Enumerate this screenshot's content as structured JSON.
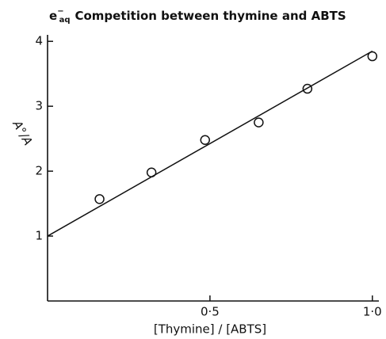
{
  "chart_data": {
    "type": "scatter",
    "title": {
      "symbol": "e",
      "charge": "−",
      "subscript": "aq",
      "text": "Competition between thymine and ABTS"
    },
    "x_label": "[Thymine] / [ABTS]",
    "y_label": "A°/A",
    "xlim": [
      0,
      1.02
    ],
    "ylim": [
      0,
      4.1
    ],
    "xticks": [
      {
        "value": 0.5,
        "label": "0·5"
      },
      {
        "value": 1.0,
        "label": "1·0"
      }
    ],
    "yticks": [
      1,
      2,
      3,
      4
    ],
    "series": [
      {
        "type": "scatter",
        "color": "#111111",
        "x": [
          0.16,
          0.32,
          0.485,
          0.65,
          0.8,
          1.0
        ],
        "values": [
          1.57,
          1.98,
          2.48,
          2.75,
          3.27,
          3.77
        ]
      },
      {
        "type": "line",
        "color": "#111111",
        "x": [
          0,
          1.0
        ],
        "values": [
          1.0,
          3.85
        ]
      }
    ]
  }
}
